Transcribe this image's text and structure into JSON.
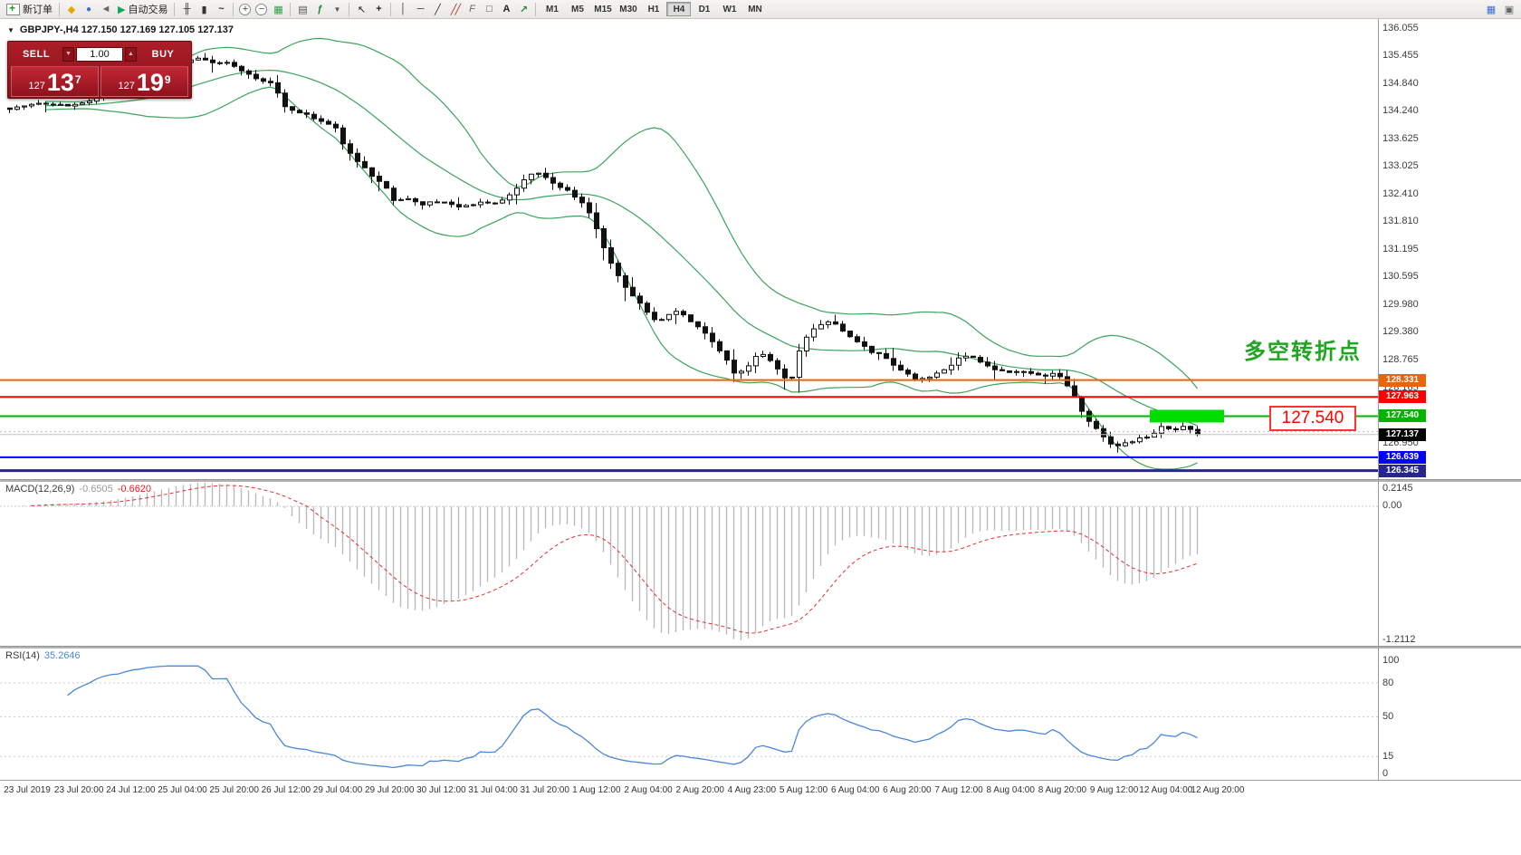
{
  "toolbar": {
    "new_order_label": "新订单",
    "autotrading_label": "自动交易",
    "timeframes": [
      "M1",
      "M5",
      "M15",
      "M30",
      "H1",
      "H4",
      "D1",
      "W1",
      "MN"
    ],
    "active_timeframe": "H4"
  },
  "chart": {
    "header": "GBPJPY-,H4  127.150 127.169 127.105 127.137"
  },
  "trade_panel": {
    "sell_label": "SELL",
    "buy_label": "BUY",
    "volume": "1.00",
    "sell_price": {
      "base": "127",
      "pips": "13",
      "pip_fraction": "7"
    },
    "buy_price": {
      "base": "127",
      "pips": "19",
      "pip_fraction": "9"
    }
  },
  "macd_panel": {
    "label": "MACD(12,26,9)",
    "main_value": "-0.6505",
    "signal_value": "-0.6620"
  },
  "rsi_panel": {
    "label": "RSI(14)",
    "value": "35.2646"
  },
  "chart_data": {
    "type": "candlestick",
    "symbol": "GBPJPY-",
    "timeframe": "H4",
    "quote": {
      "open": 127.15,
      "high": 127.169,
      "low": 127.105,
      "close": 127.137,
      "bid": 127.137,
      "ask": 127.199
    },
    "price_axis_labels": [
      "136.055",
      "135.455",
      "134.840",
      "134.240",
      "133.625",
      "133.025",
      "132.410",
      "131.810",
      "131.195",
      "130.595",
      "129.980",
      "129.380",
      "128.765",
      "128.165",
      "127.550",
      "126.950",
      "126.335"
    ],
    "h_lines": [
      {
        "price": 128.331,
        "label": "128.331",
        "color": "#E8650A",
        "width": 2
      },
      {
        "price": 127.963,
        "label": "127.963",
        "color": "#FF0000",
        "width": 2
      },
      {
        "price": 127.54,
        "label": "127.540",
        "color": "#00B400",
        "width": 2
      },
      {
        "price": 126.639,
        "label": "126.639",
        "color": "#0000FF",
        "width": 2
      },
      {
        "price": 126.345,
        "label": "126.345",
        "color": "#26268C",
        "width": 3
      }
    ],
    "current_price": {
      "price": 127.137,
      "label": "127.137",
      "color": "#000000"
    },
    "bollinger": {
      "period": 20,
      "deviation": 2,
      "color": "#3DA35E"
    },
    "macd": {
      "fast": 12,
      "slow": 26,
      "signal": 9,
      "histogram_color": "#BBBBBB",
      "signal_color": "#E03030",
      "axis_labels": [
        "0.2145",
        "0.00",
        "-1.2112"
      ],
      "display_min": -1.2112,
      "display_max": 0.2145
    },
    "rsi": {
      "period": 14,
      "color": "#4C86D8",
      "levels": [
        80,
        50,
        15
      ],
      "axis_labels": [
        "100",
        "80",
        "50",
        "15",
        "0"
      ]
    },
    "candle_path": [
      [
        8,
        134.3
      ],
      [
        40,
        134.42
      ],
      [
        70,
        134.34
      ],
      [
        100,
        134.48
      ],
      [
        130,
        134.66
      ],
      [
        160,
        134.96
      ],
      [
        190,
        135.22
      ],
      [
        215,
        135.4
      ],
      [
        232,
        135.32
      ],
      [
        250,
        135.28
      ],
      [
        266,
        135.12
      ],
      [
        282,
        134.92
      ],
      [
        298,
        134.84
      ],
      [
        312,
        134.32
      ],
      [
        326,
        134.22
      ],
      [
        342,
        134.1
      ],
      [
        356,
        133.96
      ],
      [
        368,
        133.86
      ],
      [
        380,
        133.38
      ],
      [
        392,
        133.1
      ],
      [
        406,
        132.86
      ],
      [
        420,
        132.64
      ],
      [
        432,
        132.26
      ],
      [
        446,
        132.32
      ],
      [
        460,
        132.18
      ],
      [
        476,
        132.26
      ],
      [
        492,
        132.2
      ],
      [
        508,
        132.14
      ],
      [
        524,
        132.22
      ],
      [
        540,
        132.2
      ],
      [
        554,
        132.3
      ],
      [
        566,
        132.5
      ],
      [
        578,
        132.74
      ],
      [
        590,
        132.9
      ],
      [
        602,
        132.72
      ],
      [
        614,
        132.56
      ],
      [
        626,
        132.48
      ],
      [
        638,
        132.26
      ],
      [
        650,
        131.94
      ],
      [
        662,
        131.34
      ],
      [
        674,
        130.84
      ],
      [
        686,
        130.44
      ],
      [
        698,
        130.14
      ],
      [
        710,
        129.84
      ],
      [
        722,
        129.62
      ],
      [
        736,
        129.78
      ],
      [
        748,
        129.86
      ],
      [
        760,
        129.62
      ],
      [
        772,
        129.46
      ],
      [
        786,
        129.1
      ],
      [
        798,
        128.82
      ],
      [
        810,
        128.42
      ],
      [
        822,
        128.62
      ],
      [
        836,
        128.92
      ],
      [
        848,
        128.76
      ],
      [
        860,
        128.46
      ],
      [
        870,
        128.22
      ],
      [
        882,
        129.12
      ],
      [
        896,
        129.46
      ],
      [
        908,
        129.62
      ],
      [
        920,
        129.56
      ],
      [
        932,
        129.32
      ],
      [
        946,
        129.16
      ],
      [
        958,
        128.96
      ],
      [
        972,
        128.86
      ],
      [
        984,
        128.66
      ],
      [
        996,
        128.52
      ],
      [
        1008,
        128.32
      ],
      [
        1020,
        128.4
      ],
      [
        1034,
        128.48
      ],
      [
        1046,
        128.64
      ],
      [
        1058,
        128.82
      ],
      [
        1070,
        128.86
      ],
      [
        1082,
        128.72
      ],
      [
        1096,
        128.56
      ],
      [
        1108,
        128.48
      ],
      [
        1120,
        128.54
      ],
      [
        1134,
        128.46
      ],
      [
        1146,
        128.42
      ],
      [
        1158,
        128.46
      ],
      [
        1170,
        128.4
      ],
      [
        1182,
        128.06
      ],
      [
        1194,
        127.56
      ],
      [
        1206,
        127.32
      ],
      [
        1218,
        127.02
      ],
      [
        1230,
        126.86
      ],
      [
        1244,
        126.96
      ],
      [
        1256,
        127.06
      ],
      [
        1268,
        127.12
      ],
      [
        1280,
        127.32
      ],
      [
        1292,
        127.24
      ],
      [
        1304,
        127.3
      ],
      [
        1316,
        127.2
      ],
      [
        1322,
        127.14
      ]
    ],
    "time_labels": [
      "23 Jul 2019",
      "23 Jul 20:00",
      "24 Jul 12:00",
      "25 Jul 04:00",
      "25 Jul 20:00",
      "26 Jul 12:00",
      "29 Jul 04:00",
      "29 Jul 20:00",
      "30 Jul 12:00",
      "31 Jul 04:00",
      "31 Jul 20:00",
      "1 Aug 12:00",
      "2 Aug 04:00",
      "2 Aug 20:00",
      "4 Aug 23:00",
      "5 Aug 12:00",
      "6 Aug 04:00",
      "6 Aug 20:00",
      "7 Aug 12:00",
      "8 Aug 04:00",
      "8 Aug 20:00",
      "9 Aug 12:00",
      "12 Aug 04:00",
      "12 Aug 20:00"
    ],
    "annotations": {
      "turning_point": {
        "text": "多空转折点",
        "color": "#1FA51F"
      },
      "highlight_box": {
        "color": "#00DD00"
      },
      "price_callout": {
        "text": "127.540",
        "color": "#FF0000"
      }
    }
  }
}
